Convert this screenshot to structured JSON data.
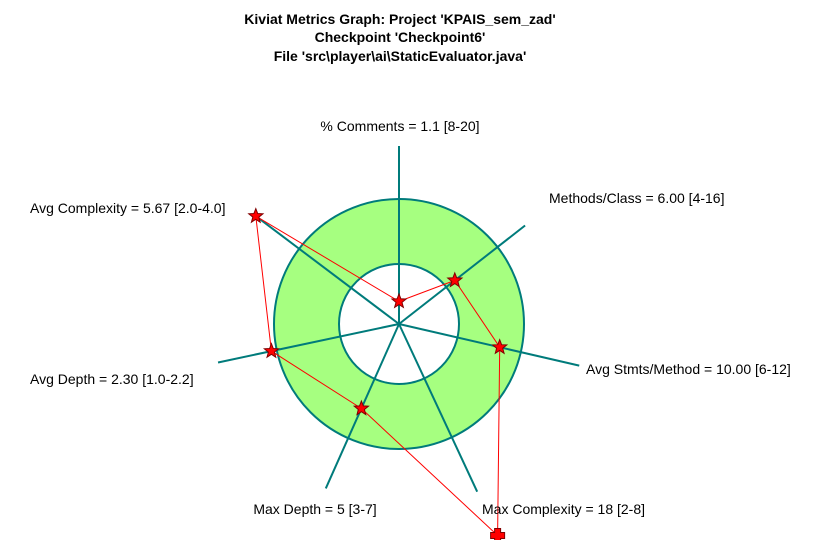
{
  "chart_data": {
    "type": "kiviat",
    "title": [
      "Kiviat Metrics Graph: Project 'KPAIS_sem_zad'",
      "Checkpoint 'Checkpoint6'",
      "File 'src\\player\\ai\\StaticEvaluator.java'"
    ],
    "axes": [
      {
        "label": "% Comments = 1.1 [8-20]",
        "metric": "% Comments",
        "value": 1.1,
        "range": [
          8,
          20
        ],
        "marker": "star"
      },
      {
        "label": "Methods/Class = 6.00 [4-16]",
        "metric": "Methods/Class",
        "value": 6.0,
        "range": [
          4,
          16
        ],
        "marker": "star"
      },
      {
        "label": "Avg Stmts/Method = 10.00 [6-12]",
        "metric": "Avg Stmts/Method",
        "value": 10.0,
        "range": [
          6,
          12
        ],
        "marker": "star"
      },
      {
        "label": "Max Complexity = 18 [2-8]",
        "metric": "Max Complexity",
        "value": 18,
        "range": [
          2,
          8
        ],
        "marker": "cross"
      },
      {
        "label": "Max Depth = 5 [3-7]",
        "metric": "Max Depth",
        "value": 5,
        "range": [
          3,
          7
        ],
        "marker": "star"
      },
      {
        "label": "Avg Depth = 2.30 [1.0-2.2]",
        "metric": "Avg Depth",
        "value": 2.3,
        "range": [
          1.0,
          2.2
        ],
        "marker": "star"
      },
      {
        "label": "Avg Complexity = 5.67 [2.0-4.0]",
        "metric": "Avg Complexity",
        "value": 5.67,
        "range": [
          2.0,
          4.0
        ],
        "marker": "star"
      }
    ],
    "colors": {
      "band_fill": "#a6ff80",
      "band_stroke": "#007b7b",
      "axis": "#007b7b",
      "polygon": "#ff0000",
      "marker_fill": "#ff0000",
      "marker_stroke": "#800000"
    }
  }
}
